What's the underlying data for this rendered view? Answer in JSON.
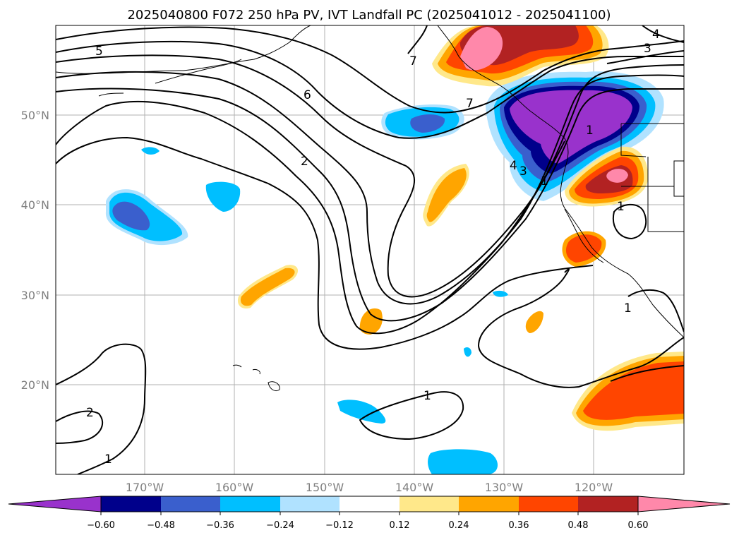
{
  "title": "2025040800 F072 250 hPa PV, IVT Landfall PC (2025041012 - 2025041100)",
  "lat_labels": [
    "50°N",
    "40°N",
    "30°N",
    "20°N"
  ],
  "lon_labels": [
    "170°W",
    "160°W",
    "150°W",
    "140°W",
    "130°W",
    "120°W"
  ],
  "colorbar": {
    "ticks": [
      "−0.60",
      "−0.48",
      "−0.36",
      "−0.24",
      "−0.12",
      "0.12",
      "0.24",
      "0.36",
      "0.48",
      "0.60"
    ],
    "colors": [
      "#9932cc",
      "#00008b",
      "#3a5fcd",
      "#00bfff",
      "#b0e2ff",
      "#ffffff",
      "#ffe88a",
      "#ffa500",
      "#ff4500",
      "#b22222",
      "#ff88aa"
    ]
  },
  "contour_labels": [
    "5",
    "6",
    "2",
    "7",
    "7",
    "4",
    "3",
    "1",
    "4",
    "3",
    "1",
    "2",
    "1",
    "1",
    "1",
    "1"
  ],
  "colors": {
    "purple": "#9932cc",
    "navy": "#00008b",
    "royal": "#3a5fcd",
    "sky": "#00bfff",
    "pale": "#b0e2ff",
    "yellow": "#ffe88a",
    "orange": "#ffa500",
    "redorange": "#ff4500",
    "firebrick": "#b22222",
    "pink": "#ff88aa"
  }
}
